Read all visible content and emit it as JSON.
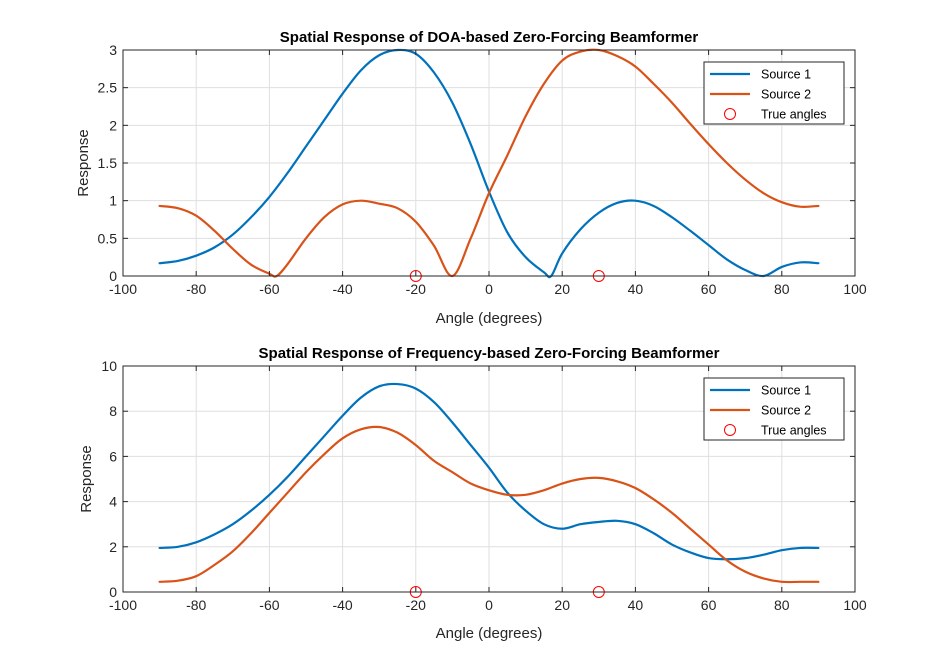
{
  "chart_data": [
    {
      "type": "line",
      "title": "Spatial Response of DOA-based Zero-Forcing Beamformer",
      "xlabel": "Angle (degrees)",
      "ylabel": "Response",
      "xlim": [
        -100,
        100
      ],
      "ylim": [
        0,
        3
      ],
      "xticks": [
        -100,
        -80,
        -60,
        -40,
        -20,
        0,
        20,
        40,
        60,
        80,
        100
      ],
      "yticks": [
        0,
        0.5,
        1,
        1.5,
        2,
        2.5,
        3
      ],
      "grid": true,
      "legend_position": "top-right",
      "series": [
        {
          "name": "Source 1",
          "color": "#0072BD",
          "x": [
            -90,
            -85,
            -80,
            -75,
            -70,
            -65,
            -60,
            -55,
            -50,
            -45,
            -40,
            -35,
            -30,
            -25,
            -20,
            -15,
            -10,
            -5,
            0,
            5,
            10,
            15,
            17,
            20,
            25,
            30,
            35,
            40,
            45,
            50,
            55,
            60,
            65,
            70,
            75,
            80,
            85,
            90
          ],
          "y": [
            0.17,
            0.2,
            0.27,
            0.38,
            0.55,
            0.78,
            1.05,
            1.37,
            1.72,
            2.07,
            2.42,
            2.73,
            2.93,
            3.0,
            2.95,
            2.7,
            2.3,
            1.75,
            1.12,
            0.58,
            0.25,
            0.05,
            0.0,
            0.3,
            0.62,
            0.84,
            0.97,
            1.0,
            0.93,
            0.78,
            0.6,
            0.41,
            0.22,
            0.08,
            0.0,
            0.12,
            0.18,
            0.17
          ]
        },
        {
          "name": "Source 2",
          "color": "#D95319",
          "x": [
            -90,
            -85,
            -80,
            -75,
            -70,
            -65,
            -60,
            -58,
            -55,
            -50,
            -45,
            -40,
            -35,
            -30,
            -25,
            -20,
            -15,
            -10,
            -5,
            0,
            5,
            10,
            15,
            20,
            25,
            30,
            35,
            40,
            45,
            50,
            55,
            60,
            65,
            70,
            75,
            80,
            85,
            90
          ],
          "y": [
            0.93,
            0.9,
            0.8,
            0.6,
            0.36,
            0.15,
            0.03,
            0.0,
            0.16,
            0.5,
            0.78,
            0.95,
            1.0,
            0.96,
            0.9,
            0.72,
            0.4,
            0.0,
            0.5,
            1.1,
            1.6,
            2.12,
            2.55,
            2.86,
            2.98,
            3.0,
            2.92,
            2.78,
            2.55,
            2.3,
            2.02,
            1.75,
            1.5,
            1.28,
            1.1,
            0.98,
            0.92,
            0.93
          ]
        }
      ],
      "markers": {
        "name": "True angles",
        "color": "#FF0000",
        "x": [
          -20,
          30
        ],
        "y": [
          0,
          0
        ]
      }
    },
    {
      "type": "line",
      "title": "Spatial Response of Frequency-based Zero-Forcing Beamformer",
      "xlabel": "Angle (degrees)",
      "ylabel": "Response",
      "xlim": [
        -100,
        100
      ],
      "ylim": [
        0,
        10
      ],
      "xticks": [
        -100,
        -80,
        -60,
        -40,
        -20,
        0,
        20,
        40,
        60,
        80,
        100
      ],
      "yticks": [
        0,
        2,
        4,
        6,
        8,
        10
      ],
      "grid": true,
      "legend_position": "top-right",
      "series": [
        {
          "name": "Source 1",
          "color": "#0072BD",
          "x": [
            -90,
            -85,
            -80,
            -75,
            -70,
            -65,
            -60,
            -55,
            -50,
            -45,
            -40,
            -35,
            -30,
            -25,
            -20,
            -15,
            -10,
            -5,
            0,
            5,
            10,
            15,
            20,
            25,
            30,
            35,
            40,
            45,
            50,
            55,
            60,
            65,
            70,
            75,
            80,
            85,
            90
          ],
          "y": [
            1.95,
            2.0,
            2.2,
            2.55,
            3.0,
            3.6,
            4.3,
            5.1,
            6.0,
            6.9,
            7.8,
            8.6,
            9.1,
            9.2,
            9.0,
            8.4,
            7.5,
            6.5,
            5.5,
            4.4,
            3.6,
            3.0,
            2.8,
            3.0,
            3.1,
            3.15,
            3.0,
            2.6,
            2.1,
            1.75,
            1.5,
            1.45,
            1.5,
            1.65,
            1.85,
            1.95,
            1.95
          ]
        },
        {
          "name": "Source 2",
          "color": "#D95319",
          "x": [
            -90,
            -85,
            -80,
            -75,
            -70,
            -65,
            -60,
            -55,
            -50,
            -45,
            -40,
            -35,
            -30,
            -25,
            -20,
            -15,
            -10,
            -5,
            0,
            5,
            10,
            15,
            20,
            25,
            30,
            35,
            40,
            45,
            50,
            55,
            60,
            65,
            70,
            75,
            80,
            85,
            90
          ],
          "y": [
            0.45,
            0.5,
            0.7,
            1.2,
            1.8,
            2.6,
            3.5,
            4.4,
            5.3,
            6.1,
            6.8,
            7.2,
            7.3,
            7.05,
            6.5,
            5.8,
            5.3,
            4.8,
            4.5,
            4.3,
            4.3,
            4.5,
            4.8,
            5.0,
            5.05,
            4.9,
            4.6,
            4.1,
            3.5,
            2.8,
            2.1,
            1.4,
            0.9,
            0.6,
            0.45,
            0.45,
            0.45
          ]
        }
      ],
      "markers": {
        "name": "True angles",
        "color": "#FF0000",
        "x": [
          -20,
          30
        ],
        "y": [
          0,
          0
        ]
      }
    }
  ]
}
